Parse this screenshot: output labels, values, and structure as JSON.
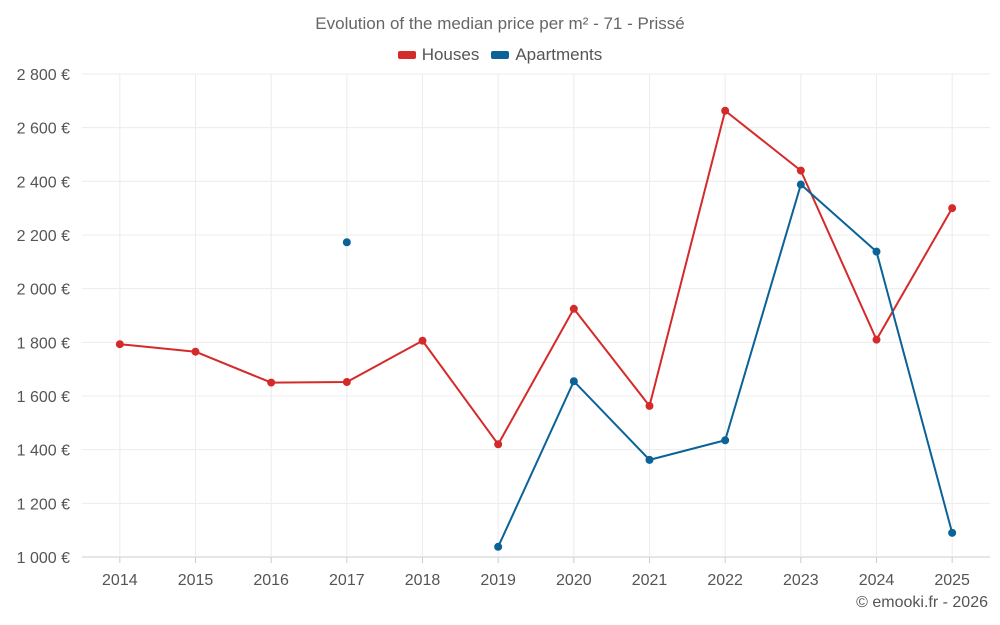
{
  "chart_data": {
    "type": "line",
    "title": "Evolution of the median price per m² - 71 - Prissé",
    "categories": [
      "2014",
      "2015",
      "2016",
      "2017",
      "2018",
      "2019",
      "2020",
      "2021",
      "2022",
      "2023",
      "2024",
      "2025"
    ],
    "series": [
      {
        "name": "Houses",
        "color": "#d42a2a",
        "values": [
          1793,
          1765,
          1650,
          1652,
          1806,
          1420,
          1925,
          1563,
          2663,
          2440,
          1810,
          2300
        ]
      },
      {
        "name": "Apartments",
        "color": "#0a6296",
        "values": [
          null,
          null,
          null,
          2173,
          null,
          1038,
          1655,
          1362,
          1435,
          2388,
          2138,
          1090
        ]
      }
    ],
    "ylim": [
      1000,
      2800
    ],
    "yticks": [
      "1 000 €",
      "1 200 €",
      "1 400 €",
      "1 600 €",
      "1 800 €",
      "2 000 €",
      "2 200 €",
      "2 400 €",
      "2 600 €",
      "2 800 €"
    ],
    "ytick_values": [
      1000,
      1200,
      1400,
      1600,
      1800,
      2000,
      2200,
      2400,
      2600,
      2800
    ],
    "grid": true,
    "legend": "top-center",
    "xlabel": "",
    "ylabel": ""
  },
  "credit": "© emooki.fr - 2026"
}
